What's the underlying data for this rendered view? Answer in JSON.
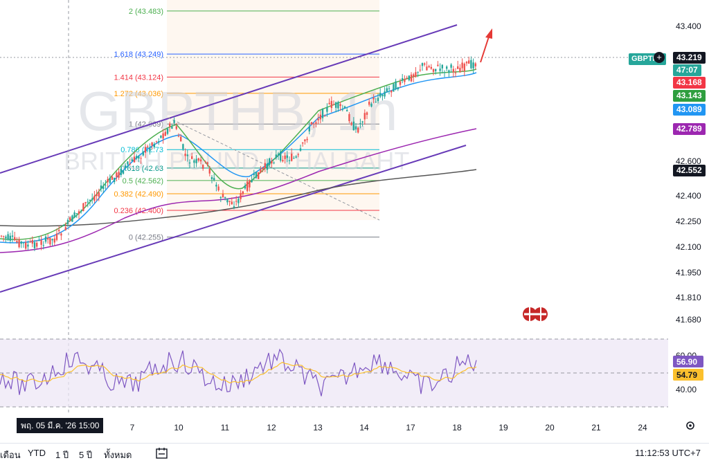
{
  "chart_data": {
    "type": "candlestick",
    "symbol": "GBPTHB",
    "watermark_symbol": "GBPTHB, 1h",
    "watermark_name": "BRITISH POUND / THAI BAHT",
    "y_axis_ticks": [
      "43.400",
      "42.600",
      "42.400",
      "42.250",
      "42.100",
      "41.950",
      "41.810",
      "41.680"
    ],
    "x_axis_ticks": [
      "7",
      "10",
      "11",
      "12",
      "13",
      "14",
      "17",
      "18",
      "19",
      "20",
      "21",
      "24"
    ],
    "current_price": "43.219",
    "countdown": "47:07",
    "price_tags": [
      {
        "value": "43.168",
        "color": "#f23645"
      },
      {
        "value": "43.143",
        "color": "#2e9e3e"
      },
      {
        "value": "43.089",
        "color": "#2196f3"
      },
      {
        "value": "42.789",
        "color": "#9c27b0"
      },
      {
        "value": "42.552",
        "color": "#131722"
      }
    ],
    "fib_levels": [
      {
        "label": "2 (43.483)",
        "color": "#4caf50"
      },
      {
        "label": "1.618 (43.249)",
        "color": "#2962ff"
      },
      {
        "label": "1.414 (43.124)",
        "color": "#f23645"
      },
      {
        "label": "1.272 (43.036)",
        "color": "#ff9800"
      },
      {
        "label": "1 (42.869)",
        "color": "#787b86"
      },
      {
        "label": "0.786 (42.73",
        "color": "#00bcd4"
      },
      {
        "label": "0.618 (42.63",
        "color": "#009688"
      },
      {
        "label": "0.5 (42.562)",
        "color": "#4caf50"
      },
      {
        "label": "0.382 (42.490)",
        "color": "#ff9800"
      },
      {
        "label": "0.236 (42.400)",
        "color": "#f23645"
      },
      {
        "label": "0 (42.255)",
        "color": "#787b86"
      }
    ],
    "rsi": {
      "levels": [
        "60.00",
        "40.00"
      ],
      "rsi_value": "56.90",
      "ma_value": "54.79"
    },
    "crosshair_date": "พฤ. 05 มี.ค. '26   15:00"
  },
  "bottom_bar": {
    "periods": [
      "เดือน",
      "YTD",
      "1 ปี",
      "5 ปี",
      "ทั้งหมด"
    ],
    "clock": "11:12:53 UTC+7"
  }
}
